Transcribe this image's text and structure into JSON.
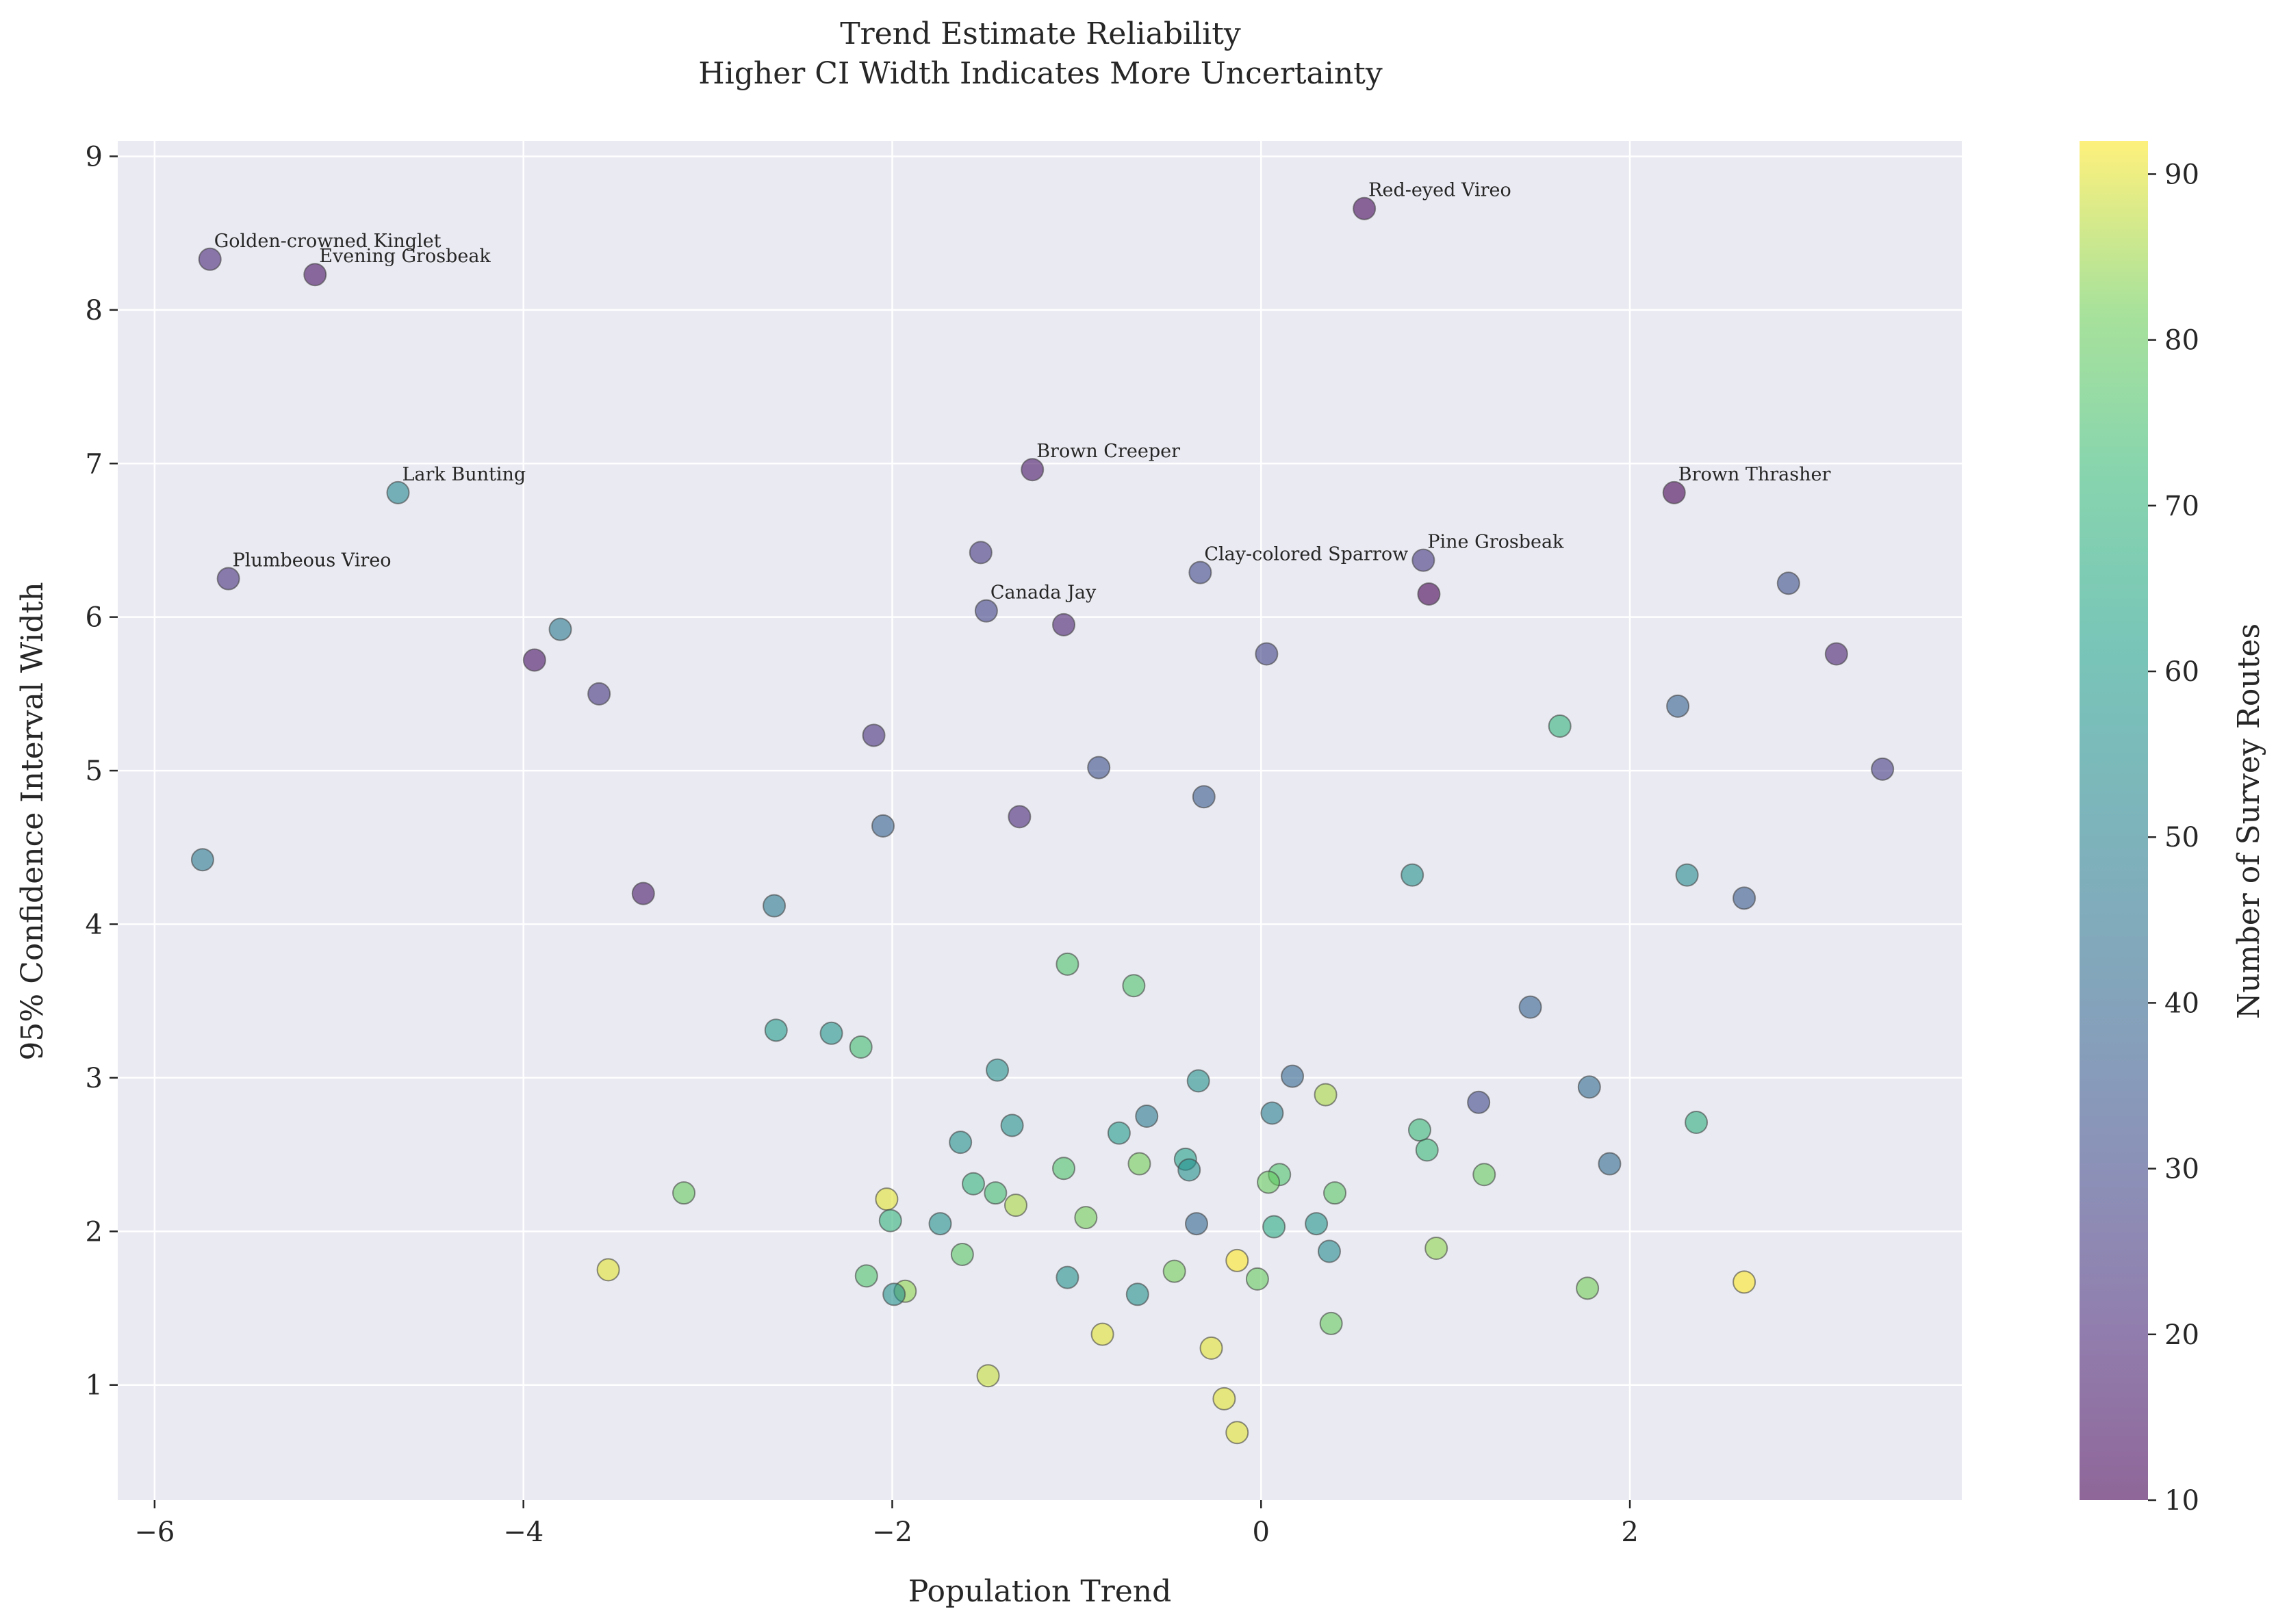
{
  "chart_data": {
    "type": "scatter",
    "title": "Trend Estimate Reliability",
    "subtitle": "Higher CI Width Indicates More Uncertainty",
    "xlabel": "Population Trend",
    "ylabel": "95% Confidence Interval Width",
    "xlim": [
      -6.2,
      3.8
    ],
    "ylim": [
      0.25,
      9.1
    ],
    "xticks": [
      -6,
      -4,
      -2,
      0,
      2
    ],
    "yticks": [
      1,
      2,
      3,
      4,
      5,
      6,
      7,
      8,
      9
    ],
    "grid": true,
    "background": "#eaeaf2",
    "colormap": "viridis",
    "colorbar": {
      "label": "Number of Survey Routes",
      "min": 10,
      "max": 92,
      "ticks": [
        10,
        20,
        30,
        40,
        50,
        60,
        70,
        80,
        90
      ]
    },
    "points": [
      {
        "x": -5.7,
        "y": 8.33,
        "c": 20,
        "label": "Golden-crowned Kinglet"
      },
      {
        "x": -5.13,
        "y": 8.23,
        "c": 14,
        "label": "Evening Grosbeak"
      },
      {
        "x": 0.56,
        "y": 8.66,
        "c": 12,
        "label": "Red-eyed Vireo"
      },
      {
        "x": -4.68,
        "y": 6.81,
        "c": 52,
        "label": "Lark Bunting"
      },
      {
        "x": -1.24,
        "y": 6.96,
        "c": 15,
        "label": "Brown Creeper"
      },
      {
        "x": 2.24,
        "y": 6.81,
        "c": 10,
        "label": "Brown Thrasher"
      },
      {
        "x": -5.6,
        "y": 6.25,
        "c": 22,
        "label": "Plumbeous Vireo"
      },
      {
        "x": -1.52,
        "y": 6.42,
        "c": 25,
        "label": ""
      },
      {
        "x": -1.49,
        "y": 6.04,
        "c": 28,
        "label": "Canada Jay"
      },
      {
        "x": -0.33,
        "y": 6.29,
        "c": 30,
        "label": "Clay-colored Sparrow"
      },
      {
        "x": 0.88,
        "y": 6.37,
        "c": 25,
        "label": "Pine Grosbeak"
      },
      {
        "x": 0.91,
        "y": 6.15,
        "c": 10,
        "label": ""
      },
      {
        "x": 2.86,
        "y": 6.22,
        "c": 32,
        "label": ""
      },
      {
        "x": -3.8,
        "y": 5.92,
        "c": 48,
        "label": ""
      },
      {
        "x": -3.94,
        "y": 5.72,
        "c": 14,
        "label": ""
      },
      {
        "x": -1.07,
        "y": 5.95,
        "c": 18,
        "label": ""
      },
      {
        "x": 0.03,
        "y": 5.76,
        "c": 28,
        "label": ""
      },
      {
        "x": 3.12,
        "y": 5.76,
        "c": 18,
        "label": ""
      },
      {
        "x": -3.59,
        "y": 5.5,
        "c": 24,
        "label": ""
      },
      {
        "x": 1.62,
        "y": 5.29,
        "c": 70,
        "label": ""
      },
      {
        "x": 2.26,
        "y": 5.42,
        "c": 38,
        "label": ""
      },
      {
        "x": -2.1,
        "y": 5.23,
        "c": 22,
        "label": ""
      },
      {
        "x": -0.88,
        "y": 5.02,
        "c": 32,
        "label": ""
      },
      {
        "x": 3.37,
        "y": 5.01,
        "c": 26,
        "label": ""
      },
      {
        "x": -0.31,
        "y": 4.83,
        "c": 36,
        "label": ""
      },
      {
        "x": -1.31,
        "y": 4.7,
        "c": 20,
        "label": ""
      },
      {
        "x": -2.05,
        "y": 4.64,
        "c": 38,
        "label": ""
      },
      {
        "x": -5.74,
        "y": 4.42,
        "c": 47,
        "label": ""
      },
      {
        "x": 0.82,
        "y": 4.32,
        "c": 56,
        "label": ""
      },
      {
        "x": 2.31,
        "y": 4.32,
        "c": 54,
        "label": ""
      },
      {
        "x": -3.35,
        "y": 4.2,
        "c": 16,
        "label": ""
      },
      {
        "x": 2.62,
        "y": 4.17,
        "c": 36,
        "label": ""
      },
      {
        "x": -2.64,
        "y": 4.12,
        "c": 48,
        "label": ""
      },
      {
        "x": -1.05,
        "y": 3.74,
        "c": 76,
        "label": ""
      },
      {
        "x": -0.69,
        "y": 3.6,
        "c": 76,
        "label": ""
      },
      {
        "x": 1.46,
        "y": 3.46,
        "c": 38,
        "label": ""
      },
      {
        "x": -2.63,
        "y": 3.31,
        "c": 60,
        "label": ""
      },
      {
        "x": -2.33,
        "y": 3.29,
        "c": 58,
        "label": ""
      },
      {
        "x": -2.17,
        "y": 3.2,
        "c": 74,
        "label": ""
      },
      {
        "x": -1.43,
        "y": 3.05,
        "c": 56,
        "label": ""
      },
      {
        "x": 0.17,
        "y": 3.01,
        "c": 40,
        "label": ""
      },
      {
        "x": -0.34,
        "y": 2.98,
        "c": 56,
        "label": ""
      },
      {
        "x": 1.78,
        "y": 2.94,
        "c": 42,
        "label": ""
      },
      {
        "x": 0.35,
        "y": 2.89,
        "c": 86,
        "label": ""
      },
      {
        "x": 1.18,
        "y": 2.84,
        "c": 30,
        "label": ""
      },
      {
        "x": 0.06,
        "y": 2.77,
        "c": 50,
        "label": ""
      },
      {
        "x": -0.62,
        "y": 2.75,
        "c": 48,
        "label": ""
      },
      {
        "x": 2.36,
        "y": 2.71,
        "c": 68,
        "label": ""
      },
      {
        "x": -1.35,
        "y": 2.69,
        "c": 56,
        "label": ""
      },
      {
        "x": 0.86,
        "y": 2.66,
        "c": 72,
        "label": ""
      },
      {
        "x": -0.77,
        "y": 2.64,
        "c": 60,
        "label": ""
      },
      {
        "x": -1.63,
        "y": 2.58,
        "c": 56,
        "label": ""
      },
      {
        "x": 0.9,
        "y": 2.53,
        "c": 72,
        "label": ""
      },
      {
        "x": -0.41,
        "y": 2.47,
        "c": 62,
        "label": ""
      },
      {
        "x": 1.89,
        "y": 2.44,
        "c": 42,
        "label": ""
      },
      {
        "x": -0.66,
        "y": 2.44,
        "c": 82,
        "label": ""
      },
      {
        "x": -1.07,
        "y": 2.41,
        "c": 76,
        "label": ""
      },
      {
        "x": -0.39,
        "y": 2.4,
        "c": 56,
        "label": ""
      },
      {
        "x": 1.21,
        "y": 2.37,
        "c": 80,
        "label": ""
      },
      {
        "x": 0.1,
        "y": 2.37,
        "c": 76,
        "label": ""
      },
      {
        "x": 0.04,
        "y": 2.32,
        "c": 80,
        "label": ""
      },
      {
        "x": -1.56,
        "y": 2.31,
        "c": 70,
        "label": ""
      },
      {
        "x": -3.13,
        "y": 2.25,
        "c": 80,
        "label": ""
      },
      {
        "x": -1.44,
        "y": 2.25,
        "c": 74,
        "label": ""
      },
      {
        "x": 0.4,
        "y": 2.25,
        "c": 78,
        "label": ""
      },
      {
        "x": -2.03,
        "y": 2.21,
        "c": 90,
        "label": ""
      },
      {
        "x": -1.33,
        "y": 2.17,
        "c": 86,
        "label": ""
      },
      {
        "x": -0.95,
        "y": 2.09,
        "c": 82,
        "label": ""
      },
      {
        "x": -2.01,
        "y": 2.07,
        "c": 70,
        "label": ""
      },
      {
        "x": -1.74,
        "y": 2.05,
        "c": 56,
        "label": ""
      },
      {
        "x": -0.35,
        "y": 2.05,
        "c": 40,
        "label": ""
      },
      {
        "x": 0.3,
        "y": 2.05,
        "c": 58,
        "label": ""
      },
      {
        "x": 0.07,
        "y": 2.03,
        "c": 66,
        "label": ""
      },
      {
        "x": 0.95,
        "y": 1.89,
        "c": 84,
        "label": ""
      },
      {
        "x": 0.37,
        "y": 1.87,
        "c": 54,
        "label": ""
      },
      {
        "x": -1.62,
        "y": 1.85,
        "c": 78,
        "label": ""
      },
      {
        "x": -0.13,
        "y": 1.81,
        "c": 92,
        "label": ""
      },
      {
        "x": -3.54,
        "y": 1.75,
        "c": 90,
        "label": ""
      },
      {
        "x": -0.47,
        "y": 1.74,
        "c": 82,
        "label": ""
      },
      {
        "x": -2.14,
        "y": 1.71,
        "c": 76,
        "label": ""
      },
      {
        "x": -1.05,
        "y": 1.7,
        "c": 56,
        "label": ""
      },
      {
        "x": -0.02,
        "y": 1.69,
        "c": 80,
        "label": ""
      },
      {
        "x": 2.62,
        "y": 1.67,
        "c": 92,
        "label": ""
      },
      {
        "x": 1.77,
        "y": 1.63,
        "c": 82,
        "label": ""
      },
      {
        "x": -1.93,
        "y": 1.61,
        "c": 84,
        "label": ""
      },
      {
        "x": -1.99,
        "y": 1.59,
        "c": 56,
        "label": ""
      },
      {
        "x": -0.67,
        "y": 1.59,
        "c": 56,
        "label": ""
      },
      {
        "x": 0.38,
        "y": 1.4,
        "c": 80,
        "label": ""
      },
      {
        "x": -0.86,
        "y": 1.33,
        "c": 90,
        "label": ""
      },
      {
        "x": -0.27,
        "y": 1.24,
        "c": 90,
        "label": ""
      },
      {
        "x": -1.48,
        "y": 1.06,
        "c": 88,
        "label": ""
      },
      {
        "x": -0.2,
        "y": 0.91,
        "c": 90,
        "label": ""
      },
      {
        "x": -0.13,
        "y": 0.69,
        "c": 90,
        "label": ""
      }
    ]
  }
}
